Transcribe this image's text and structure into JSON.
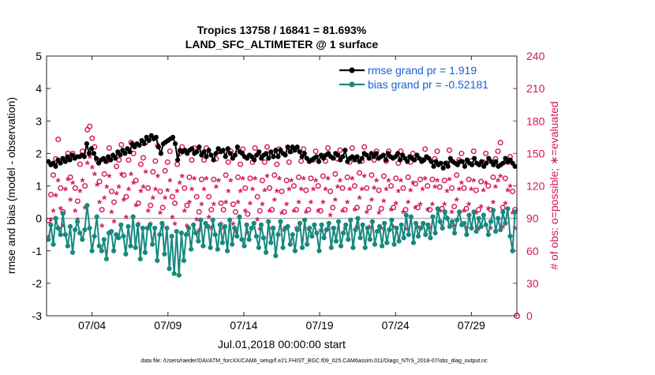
{
  "chart_data": {
    "type": "line",
    "title_line1": "Tropics 13758 / 16841 = 81.693%",
    "title_line2": "LAND_SFC_ALTIMETER @ 1 surface",
    "xlabel": "Jul.01,2018 00:00:00 start",
    "ylabel_left": "rmse and bias (model - observation)",
    "ylabel_right": "# of obs: o=possible; ∗=evaluated",
    "ylim_left": [
      -3,
      5
    ],
    "ylim_right": [
      0,
      240
    ],
    "xlim": [
      1.0,
      32.0
    ],
    "x_ticks": [
      4,
      9,
      14,
      19,
      24,
      29
    ],
    "x_tick_labels": [
      "07/04",
      "07/09",
      "07/14",
      "07/19",
      "07/24",
      "07/29"
    ],
    "y_ticks_left": [
      -3,
      -2,
      -1,
      0,
      1,
      2,
      3,
      4,
      5
    ],
    "y_tick_labels_left": [
      "-3",
      "-2",
      "-1",
      "0",
      "1",
      "2",
      "3",
      "4",
      "5"
    ],
    "y_ticks_right": [
      0,
      30,
      60,
      90,
      120,
      150,
      180,
      210,
      240
    ],
    "y_tick_labels_right": [
      "0",
      "30",
      "60",
      "90",
      "120",
      "150",
      "180",
      "210",
      "240"
    ],
    "footer": "data file: /Users/raeder/DAI/ATM_forcXX/CAM6_setup/f.e21.FHIST_BGC.f09_025.CAM6assim.011/Diags_NTrS_2018-07/obs_diag_output.nc",
    "colors": {
      "rmse": "#000000",
      "bias": "#17897f",
      "counts": "#d4145a",
      "zero_line": "#b4b4b4"
    },
    "legend": [
      {
        "name": "rmse grand pr = 1.919"
      },
      {
        "name": "bias grand pr = -0.52181"
      }
    ],
    "series": [
      {
        "name": "rmse",
        "axis": "left",
        "values": [
          1.75,
          1.65,
          1.7,
          1.6,
          1.8,
          1.7,
          1.85,
          1.75,
          1.9,
          1.8,
          1.95,
          1.85,
          1.9,
          1.9,
          1.95,
          1.9,
          2.3,
          2.0,
          2.15,
          2.0,
          1.85,
          1.7,
          1.8,
          1.85,
          1.75,
          1.9,
          1.8,
          1.95,
          1.85,
          2.05,
          1.95,
          2.1,
          2.0,
          2.15,
          2.05,
          2.3,
          2.2,
          2.3,
          2.25,
          2.4,
          2.3,
          2.5,
          2.4,
          2.55,
          2.45,
          2.5,
          2.2,
          2.0,
          2.3,
          2.35,
          2.4,
          2.45,
          2.5,
          2.3,
          1.8,
          2.1,
          2.05,
          2.1,
          2.0,
          2.1,
          2.15,
          2.0,
          2.05,
          2.2,
          1.95,
          2.05,
          1.9,
          2.1,
          1.95,
          1.8,
          2.0,
          2.15,
          2.05,
          2.1,
          1.9,
          2.15,
          2.0,
          1.85,
          1.95,
          2.2,
          2.05,
          2.0,
          1.9,
          1.85,
          1.95,
          1.9,
          1.8,
          1.95,
          2.05,
          1.85,
          1.95,
          2.0,
          1.85,
          2.05,
          1.9,
          2.1,
          1.9,
          2.1,
          2.0,
          1.95,
          2.2,
          2.05,
          2.2,
          2.1,
          2.2,
          2.05,
          1.9,
          2.0,
          1.85,
          1.75,
          1.8,
          1.85,
          1.9,
          1.75,
          1.95,
          1.85,
          1.95,
          2.0,
          1.9,
          1.85,
          2.0,
          1.95,
          1.8,
          1.9,
          2.1,
          1.75,
          1.85,
          1.9,
          1.8,
          1.9,
          1.75,
          1.85,
          2.0,
          1.95,
          1.85,
          2.0,
          1.9,
          2.0,
          1.85,
          1.9,
          1.95,
          1.8,
          2.0,
          1.9,
          1.85,
          1.9,
          2.0,
          1.8,
          1.95,
          1.85,
          1.75,
          1.9,
          1.85,
          1.8,
          1.95,
          1.85,
          1.75,
          1.8,
          1.9,
          1.85,
          1.75,
          1.6,
          1.75,
          1.65,
          1.7,
          1.55,
          1.7,
          1.6,
          1.85,
          1.75,
          1.7,
          1.65,
          1.75,
          1.75,
          1.6,
          1.8,
          1.7,
          1.65,
          1.85,
          1.7,
          1.65,
          1.75,
          1.6,
          1.7,
          1.85,
          1.75,
          1.65,
          1.75,
          1.6,
          1.65,
          1.7,
          1.85,
          1.75,
          1.8,
          1.7,
          1.6
        ]
      },
      {
        "name": "bias",
        "axis": "left",
        "values": [
          -0.65,
          -0.2,
          -0.8,
          0.0,
          -0.3,
          -0.5,
          0.15,
          -0.5,
          -0.85,
          -0.25,
          -1.05,
          -0.35,
          -0.1,
          -0.45,
          -0.65,
          -0.35,
          0.4,
          -0.3,
          -1.0,
          -0.55,
          0.05,
          -0.85,
          -1.0,
          -0.65,
          -1.25,
          -0.45,
          -0.4,
          -1.0,
          -0.5,
          -0.6,
          -0.2,
          -0.55,
          -1.1,
          -0.25,
          -0.85,
          0.05,
          -0.9,
          -0.2,
          -1.25,
          -0.3,
          -1.05,
          -0.3,
          -0.2,
          -0.8,
          -0.3,
          -1.3,
          -0.5,
          -0.15,
          -1.1,
          -0.3,
          -1.55,
          -0.55,
          -1.7,
          -0.4,
          -1.75,
          -0.45,
          -1.3,
          -0.5,
          -0.3,
          -0.95,
          -0.2,
          -0.45,
          -0.7,
          -0.05,
          -0.85,
          -0.15,
          -0.25,
          -0.9,
          -0.05,
          -0.5,
          -0.95,
          -0.2,
          -0.75,
          -0.25,
          -1.0,
          -0.05,
          -0.8,
          -0.3,
          -0.55,
          0.05,
          -0.65,
          -0.85,
          -0.2,
          -0.65,
          -0.3,
          -0.15,
          -0.55,
          -0.9,
          -0.2,
          -0.6,
          -1.05,
          -0.1,
          -0.75,
          -0.3,
          -1.15,
          -0.5,
          -0.1,
          -0.9,
          -0.3,
          -0.25,
          -0.8,
          -0.5,
          -1.0,
          -0.35,
          -0.15,
          -0.9,
          -0.05,
          -0.8,
          -0.3,
          -0.55,
          -0.2,
          -0.45,
          -1.0,
          -0.2,
          -0.6,
          -0.35,
          -0.15,
          -0.9,
          -0.3,
          -0.7,
          -0.1,
          -0.85,
          -0.45,
          -0.2,
          -0.65,
          -0.05,
          -0.9,
          -0.35,
          0.0,
          -0.6,
          -0.2,
          -0.9,
          -0.3,
          -0.65,
          -0.1,
          -0.8,
          -0.4,
          -0.25,
          -0.85,
          -0.15,
          -0.75,
          -0.35,
          -0.05,
          -0.8,
          -0.3,
          -0.7,
          -0.2,
          -0.6,
          0.1,
          -0.5,
          0.05,
          -0.75,
          -0.15,
          -0.55,
          -0.3,
          -0.15,
          -0.5,
          -0.2,
          -0.6,
          0.05,
          -0.45,
          0.3,
          -0.1,
          -0.3,
          0.2,
          0.0,
          -0.25,
          -0.1,
          -0.45,
          -0.05,
          0.2,
          -0.2,
          -0.15,
          -0.5,
          0.1,
          -0.3,
          0.2,
          -0.4,
          0.0,
          -0.25,
          0.1,
          -0.2,
          -0.5,
          -0.1,
          0.25,
          -0.4,
          0.0,
          -0.35,
          0.2,
          -0.15,
          0.3,
          -0.55,
          -1.0,
          0.2
        ]
      },
      {
        "name": "possible",
        "axis": "right",
        "marker": "o",
        "values": [
          88,
          112,
          130,
          145,
          163,
          118,
          96,
          143,
          150,
          128,
          150,
          118,
          106,
          140,
          152,
          120,
          172,
          175,
          164,
          156,
          144,
          124,
          98,
          131,
          143,
          155,
          115,
          105,
          138,
          144,
          158,
          130,
          110,
          144,
          160,
          150,
          125,
          104,
          140,
          146,
          160,
          118,
          102,
          133,
          143,
          157,
          115,
          100,
          134,
          142,
          152,
          110,
          104,
          140,
          150,
          156,
          118,
          102,
          128,
          144,
          155,
          110,
          96,
          126,
          144,
          155,
          110,
          98,
          126,
          145,
          152,
          104,
          98,
          130,
          142,
          152,
          103,
          96,
          128,
          140,
          154,
          118,
          94,
          127,
          142,
          155,
          110,
          97,
          125,
          142,
          156,
          118,
          98,
          130,
          140,
          154,
          115,
          96,
          125,
          142,
          152,
          120,
          98,
          128,
          143,
          154,
          116,
          98,
          127,
          144,
          152,
          120,
          97,
          129,
          143,
          155,
          115,
          100,
          131,
          145,
          153,
          118,
          98,
          128,
          142,
          155,
          120,
          100,
          132,
          143,
          156,
          118,
          100,
          130,
          144,
          152,
          116,
          99,
          129,
          143,
          152,
          120,
          100,
          127,
          141,
          152,
          118,
          98,
          128,
          142,
          150,
          122,
          100,
          126,
          144,
          154,
          120,
          98,
          126,
          145,
          152,
          119,
          99,
          125,
          141,
          153,
          118,
          101,
          130,
          144,
          150,
          118,
          99,
          126,
          143,
          152,
          116,
          98,
          124,
          142,
          150,
          120,
          98,
          128,
          145,
          152,
          160,
          100,
          127,
          142,
          147,
          115,
          98
        ]
      },
      {
        "name": "evaluated",
        "axis": "right",
        "marker": "*",
        "values": [
          72,
          88,
          96,
          110,
          124,
          98,
          82,
          116,
          125,
          106,
          122,
          96,
          88,
          114,
          124,
          99,
          140,
          146,
          136,
          130,
          120,
          104,
          82,
          108,
          118,
          128,
          95,
          86,
          112,
          118,
          130,
          106,
          90,
          116,
          130,
          122,
          101,
          84,
          114,
          118,
          132,
          96,
          84,
          108,
          116,
          128,
          94,
          82,
          108,
          115,
          124,
          90,
          84,
          114,
          122,
          128,
          96,
          82,
          104,
          116,
          126,
          88,
          78,
          102,
          116,
          126,
          90,
          80,
          102,
          118,
          124,
          84,
          80,
          104,
          114,
          124,
          84,
          78,
          104,
          114,
          126,
          96,
          76,
          103,
          116,
          126,
          88,
          79,
          102,
          115,
          128,
          96,
          80,
          106,
          114,
          126,
          94,
          78,
          102,
          116,
          124,
          96,
          80,
          104,
          116,
          126,
          95,
          79,
          104,
          116,
          124,
          96,
          78,
          104,
          116,
          126,
          92,
          80,
          106,
          118,
          124,
          96,
          80,
          104,
          116,
          126,
          97,
          81,
          108,
          116,
          128,
          95,
          81,
          106,
          117,
          124,
          94,
          80,
          105,
          116,
          124,
          97,
          81,
          103,
          114,
          124,
          95,
          79,
          104,
          115,
          122,
          99,
          81,
          102,
          116,
          126,
          97,
          80,
          102,
          118,
          124,
          96,
          80,
          102,
          114,
          125,
          95,
          82,
          106,
          116,
          122,
          96,
          80,
          102,
          116,
          124,
          94,
          79,
          100,
          115,
          122,
          98,
          80,
          104,
          118,
          124,
          128,
          81,
          103,
          115,
          119,
          94,
          80
        ]
      }
    ]
  }
}
